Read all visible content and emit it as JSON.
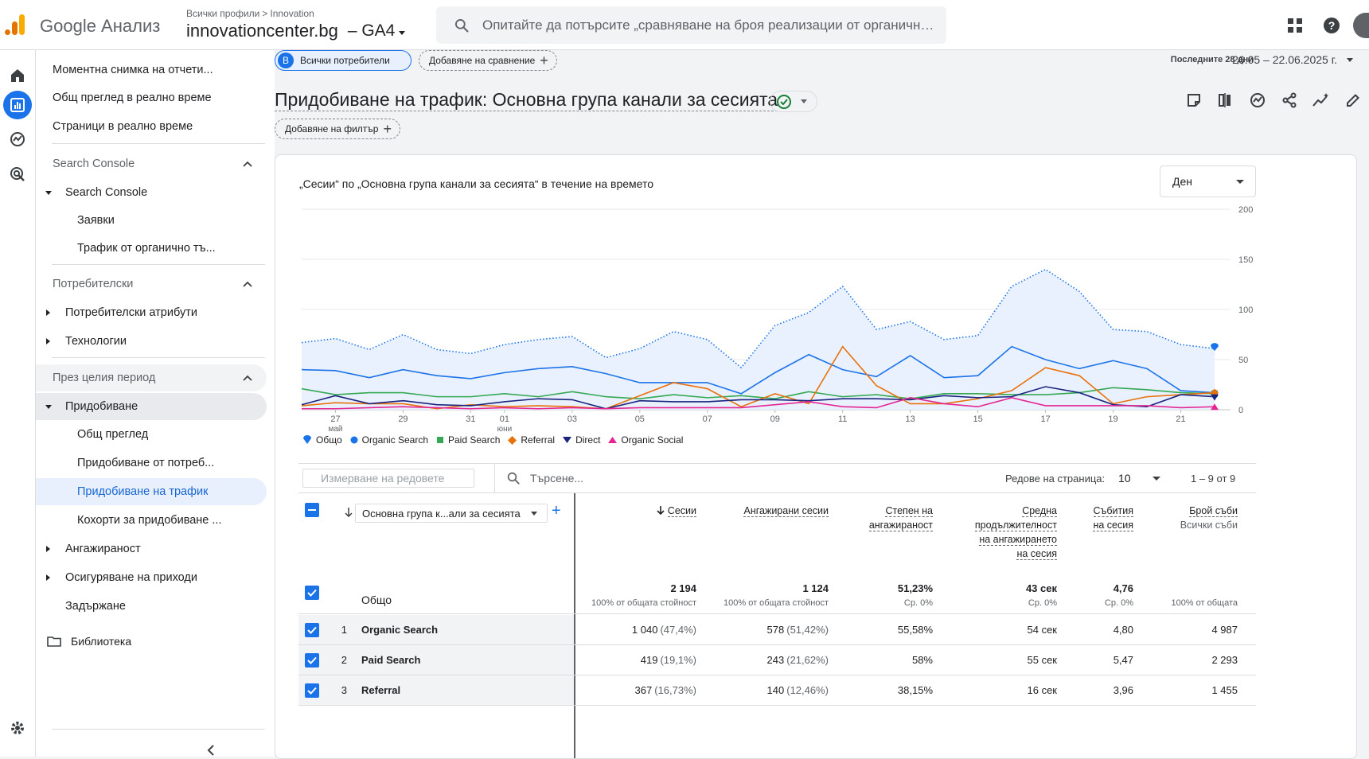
{
  "header": {
    "app_name": "Google Анализ",
    "breadcrumb_all": "Всички профили",
    "breadcrumb_sep": ">",
    "breadcrumb_account": "Innovation",
    "property_name": "innovationcenter.bg",
    "property_suffix": "– GA4",
    "search_placeholder": "Опитайте да потърсите „сравняване на броя реализации от органичния трафик“"
  },
  "nav": {
    "items": [
      {
        "label": "Моментна снимка на отчети..."
      },
      {
        "label": "Общ преглед в реално време"
      },
      {
        "label": "Страници в реално време"
      }
    ],
    "sections": {
      "search_console": "Search Console",
      "search_console_group": "Search Console",
      "queries": "Заявки",
      "organic_traffic": "Трафик от органично тъ...",
      "user": "Потребителски",
      "user_attributes": "Потребителски атрибути",
      "tech": "Технологии",
      "lifecycle": "През целия период",
      "acquisition": "Придобиване",
      "overview": "Общ преглед",
      "user_acq": "Придобиване от потреб...",
      "traffic_acq": "Придобиване на трафик",
      "cohorts": "Кохорти за придобиване ...",
      "engagement": "Ангажираност",
      "monetization": "Осигуряване на приходи",
      "retention": "Задържане"
    },
    "library": "Библиотека"
  },
  "toolbar": {
    "segment_badge": "В",
    "segment_label": "Всички потребители",
    "add_comparison": "Добавяне на сравнение",
    "date_label": "Последните 28 дни",
    "date_range": "26.05 – 22.06.2025 г.",
    "title": "Придобиване на трафик: Основна група канали за сесията",
    "add_filter": "Добавяне на филтър"
  },
  "chart_card": {
    "title": "„Сесии“ по „Основна група канали за сесията“ в течение на времето",
    "period": "Ден"
  },
  "chart_data": {
    "type": "line",
    "x": [
      "26.05",
      "27.05",
      "28.05",
      "29.05",
      "30.05",
      "31.05",
      "01.06",
      "02.06",
      "03.06",
      "04.06",
      "05.06",
      "06.06",
      "07.06",
      "08.06",
      "09.06",
      "10.06",
      "11.06",
      "12.06",
      "13.06",
      "14.06",
      "15.06",
      "16.06",
      "17.06",
      "18.06",
      "19.06",
      "20.06",
      "21.06",
      "22.06"
    ],
    "x_tick_labels": [
      {
        "i": 1,
        "label": "27",
        "sub": "май"
      },
      {
        "i": 3,
        "label": "29"
      },
      {
        "i": 5,
        "label": "31"
      },
      {
        "i": 6,
        "label": "01",
        "sub": "юни"
      },
      {
        "i": 8,
        "label": "03"
      },
      {
        "i": 10,
        "label": "05"
      },
      {
        "i": 12,
        "label": "07"
      },
      {
        "i": 14,
        "label": "09"
      },
      {
        "i": 16,
        "label": "11"
      },
      {
        "i": 18,
        "label": "13"
      },
      {
        "i": 20,
        "label": "15"
      },
      {
        "i": 22,
        "label": "17"
      },
      {
        "i": 24,
        "label": "19"
      },
      {
        "i": 26,
        "label": "21"
      }
    ],
    "y_ticks": [
      "200",
      "150",
      "100",
      "50",
      "0"
    ],
    "ylim": [
      0,
      200
    ],
    "series": [
      {
        "name": "Общо",
        "color": "#1a73e8",
        "style": "dotted-area",
        "values": [
          67,
          71,
          60,
          75,
          60,
          56,
          65,
          70,
          73,
          52,
          61,
          78,
          70,
          42,
          84,
          97,
          123,
          80,
          88,
          70,
          74,
          123,
          140,
          118,
          80,
          78,
          65,
          61
        ]
      },
      {
        "name": "Organic Search",
        "color": "#1a73e8",
        "style": "solid",
        "values": [
          40,
          39,
          32,
          40,
          34,
          31,
          37,
          41,
          43,
          36,
          27,
          27,
          27,
          16,
          37,
          55,
          40,
          33,
          54,
          32,
          34,
          63,
          50,
          41,
          49,
          41,
          19,
          17
        ]
      },
      {
        "name": "Paid Search",
        "color": "#34a853",
        "style": "solid",
        "values": [
          21,
          15,
          17,
          17,
          13,
          13,
          16,
          13,
          18,
          13,
          11,
          15,
          12,
          14,
          11,
          18,
          13,
          15,
          11,
          16,
          16,
          15,
          15,
          17,
          22,
          20,
          17,
          16
        ]
      },
      {
        "name": "Referral",
        "color": "#e8710a",
        "style": "solid",
        "values": [
          4,
          7,
          6,
          6,
          1,
          5,
          3,
          4,
          3,
          1,
          14,
          27,
          21,
          3,
          16,
          6,
          63,
          24,
          6,
          6,
          11,
          19,
          42,
          34,
          6,
          13,
          15,
          17
        ]
      },
      {
        "name": "Direct",
        "color": "#1a237e",
        "style": "solid",
        "values": [
          5,
          14,
          6,
          9,
          5,
          4,
          8,
          11,
          10,
          1,
          9,
          8,
          8,
          10,
          10,
          9,
          11,
          11,
          10,
          14,
          12,
          13,
          23,
          17,
          5,
          3,
          15,
          13
        ]
      },
      {
        "name": "Organic Social",
        "color": "#e52592",
        "style": "solid",
        "values": [
          1,
          1,
          2,
          3,
          2,
          1,
          2,
          1,
          2,
          1,
          2,
          2,
          2,
          2,
          5,
          8,
          3,
          2,
          12,
          6,
          3,
          12,
          4,
          4,
          4,
          4,
          2,
          3
        ]
      }
    ]
  },
  "table": {
    "measure_placeholder": "Измерване на редовете",
    "search_placeholder": "Търсене...",
    "rows_per_page_label": "Редове на страница:",
    "rows_per_page": "10",
    "pagination": "1 – 9 от 9",
    "dimension_label": "Основна група к...али за сесията",
    "columns": [
      {
        "l1": "Сесии",
        "l2": "",
        "l3": "",
        "l4": ""
      },
      {
        "l1": "Ангажирани сесии",
        "l2": "",
        "l3": "",
        "l4": ""
      },
      {
        "l1": "Степен на",
        "l2": "ангажираност",
        "l3": "",
        "l4": ""
      },
      {
        "l1": "Средна",
        "l2": "продължителност",
        "l3": "на ангажирането",
        "l4": "на сесия"
      },
      {
        "l1": "Събития",
        "l2": "на сесия",
        "l3": "",
        "l4": ""
      },
      {
        "l1": "Брой съби",
        "l2": "Всички съби",
        "l3": "",
        "l4": ""
      }
    ],
    "totals": {
      "label": "Общо",
      "values": [
        "2 194",
        "1 124",
        "51,23%",
        "43 сек",
        "4,76",
        ""
      ],
      "subs": [
        "100% от общата стойност",
        "100% от общата стойност",
        "Ср. 0%",
        "Ср. 0%",
        "Ср. 0%",
        "100% от общата"
      ]
    },
    "rows": [
      {
        "idx": "1",
        "name": "Organic Search",
        "v": [
          "1 040",
          "578",
          "55,58%",
          "54 сек",
          "4,80",
          "4 987"
        ],
        "p": [
          "(47,4%)",
          "(51,42%)",
          "",
          "",
          "",
          ""
        ]
      },
      {
        "idx": "2",
        "name": "Paid Search",
        "v": [
          "419",
          "243",
          "58%",
          "55 сек",
          "5,47",
          "2 293"
        ],
        "p": [
          "(19,1%)",
          "(21,62%)",
          "",
          "",
          "",
          ""
        ]
      },
      {
        "idx": "3",
        "name": "Referral",
        "v": [
          "367",
          "140",
          "38,15%",
          "16 сек",
          "3,96",
          "1 455"
        ],
        "p": [
          "(16,73%)",
          "(12,46%)",
          "",
          "",
          "",
          ""
        ]
      }
    ]
  }
}
